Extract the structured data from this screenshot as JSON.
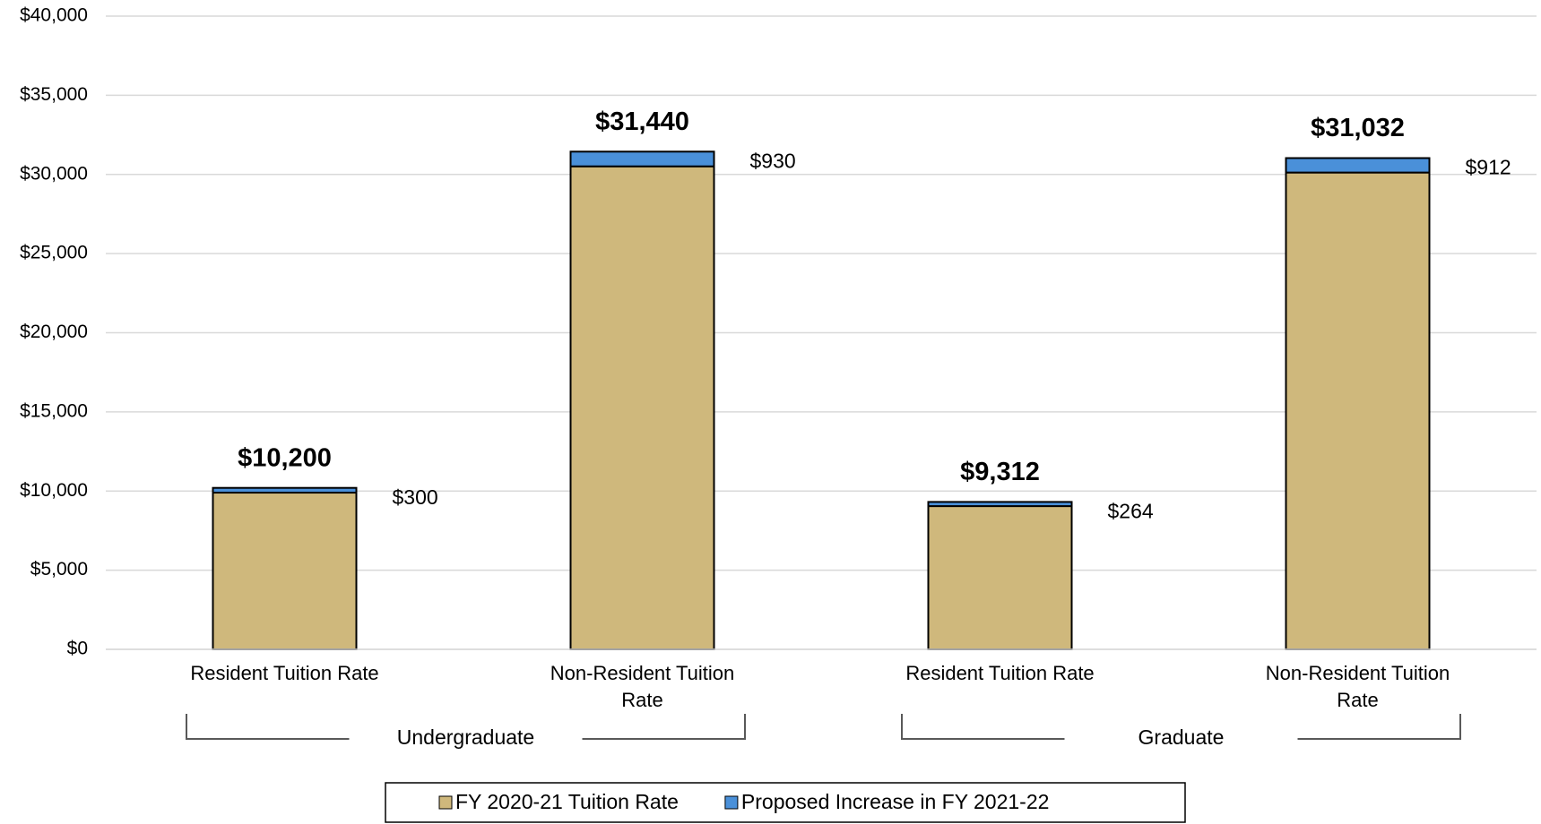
{
  "chart_data": {
    "type": "stacked_bar",
    "categories": [
      "Resident Tuition Rate",
      "Non-Resident Tuition Rate",
      "Resident Tuition Rate",
      "Non-Resident Tuition Rate"
    ],
    "groups": [
      "Undergraduate",
      "Graduate"
    ],
    "series": [
      {
        "name": "FY 2020-21 Tuition Rate",
        "color": "#cfb87c",
        "values": [
          9900,
          30510,
          9048,
          30120
        ]
      },
      {
        "name": "Proposed Increase in FY 2021-22",
        "color": "#4a90d9",
        "values": [
          300,
          930,
          264,
          912
        ],
        "value_labels": [
          "$300",
          "$930",
          "$264",
          "$912"
        ]
      }
    ],
    "totals": [
      10200,
      31440,
      9312,
      31032
    ],
    "total_labels": [
      "$10,200",
      "$31,440",
      "$9,312",
      "$31,032"
    ],
    "ylim": [
      0,
      40000
    ],
    "yticks": [
      {
        "value": 0,
        "label": "$0"
      },
      {
        "value": 5000,
        "label": "$5,000"
      },
      {
        "value": 10000,
        "label": "$10,000"
      },
      {
        "value": 15000,
        "label": "$15,000"
      },
      {
        "value": 20000,
        "label": "$20,000"
      },
      {
        "value": 25000,
        "label": "$25,000"
      },
      {
        "value": 30000,
        "label": "$30,000"
      },
      {
        "value": 35000,
        "label": "$35,000"
      },
      {
        "value": 40000,
        "label": "$40,000"
      }
    ],
    "grid": true,
    "legend": "bottom"
  }
}
